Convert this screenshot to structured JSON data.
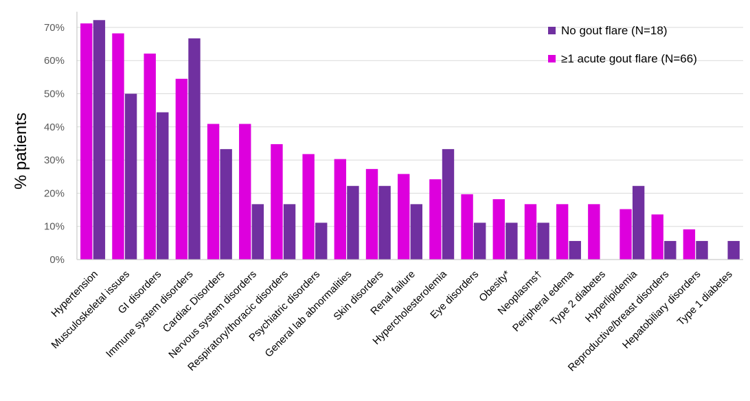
{
  "chart_data": {
    "type": "bar",
    "ylabel": "% patients",
    "ylim": [
      0,
      72
    ],
    "yticks": [
      "0%",
      "10%",
      "20%",
      "30%",
      "40%",
      "50%",
      "60%",
      "70%"
    ],
    "grid": true,
    "legend_position": "top-right",
    "categories": [
      "Hypertension",
      "Musculoskeletal issues",
      "GI disorders",
      "Immune system disorders",
      "Cardiac Disorders",
      "Nervous system disorders",
      "Respiratory/thoracic disorders",
      "Psychiatric disorders",
      "General lab abnormalities",
      "Skin disorders",
      "Renal failure",
      "Hypercholesterolemia",
      "Eye disorders",
      "Obesity*",
      "Neoplasms†",
      "Peripheral edema",
      "Type 2 diabetes",
      "Hyperlipidemia",
      "Reproductive/breast disorders",
      "Hepatobiliary disorders",
      "Type 1 diabetes"
    ],
    "series": [
      {
        "name": "≥1 acute gout flare (N=66)",
        "color": "#dd00dd",
        "values": [
          71.2,
          68.2,
          62.1,
          54.5,
          40.9,
          40.9,
          34.8,
          31.8,
          30.3,
          27.3,
          25.8,
          24.2,
          19.7,
          18.2,
          16.7,
          16.7,
          16.7,
          15.2,
          13.6,
          9.1,
          0
        ]
      },
      {
        "name": "No gout flare (N=18)",
        "color": "#7030a0",
        "values": [
          72.2,
          50.0,
          44.4,
          66.7,
          33.3,
          16.7,
          16.7,
          11.1,
          22.2,
          22.2,
          16.7,
          33.3,
          11.1,
          11.1,
          11.1,
          5.6,
          0,
          22.2,
          5.6,
          5.6,
          5.6
        ]
      }
    ],
    "legend_order": [
      1,
      0
    ]
  }
}
